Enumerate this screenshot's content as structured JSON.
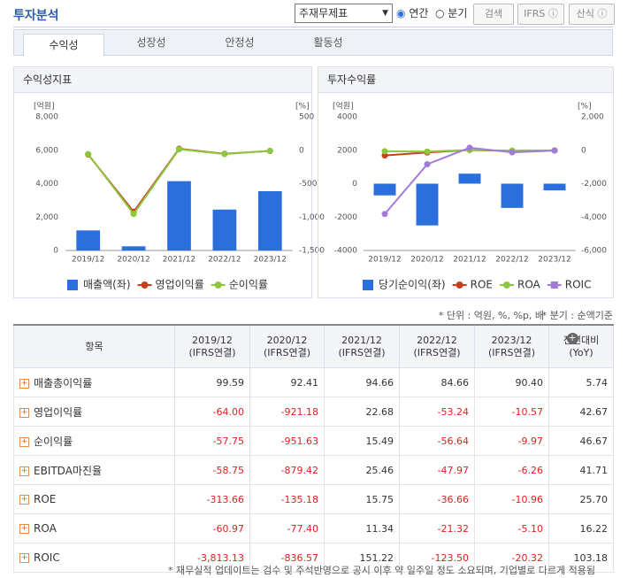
{
  "header": {
    "title": "투자분석",
    "select": "주재무제표",
    "radios": [
      "연간",
      "분기"
    ],
    "buttons": [
      "검색",
      "IFRS",
      "산식"
    ]
  },
  "tabs": [
    "수익성",
    "성장성",
    "안정성",
    "활동성"
  ],
  "chart_data": [
    {
      "type": "combo",
      "title": "수익성지표",
      "y_label": "[억원]",
      "y2_label": "[%]",
      "categories": [
        "2019/12",
        "2020/12",
        "2021/12",
        "2022/12",
        "2023/12"
      ],
      "ylim": [
        0,
        8000
      ],
      "yticks": [
        0,
        {
          "value": 2000,
          "label": "2,000"
        },
        {
          "value": 4000,
          "label": "4,000"
        },
        {
          "value": 6000,
          "label": "6,000"
        },
        {
          "value": 8000,
          "label": "8,000"
        }
      ],
      "y2lim": [
        -1500,
        500
      ],
      "y2ticks": [
        {
          "value": -1500,
          "label": "-1,500"
        },
        {
          "value": -1000,
          "label": "-1,000"
        },
        -500,
        0,
        500
      ],
      "grid": false,
      "series": [
        {
          "name": "매출액(좌)",
          "type": "bar",
          "color": "#2a6fdb",
          "values": [
            1200,
            250,
            4150,
            2450,
            3550
          ]
        },
        {
          "name": "영업이익률",
          "type": "line",
          "axis": "y2",
          "color": "#c8401a",
          "values": [
            -64.0,
            -921.18,
            22.68,
            -53.24,
            -10.57
          ]
        },
        {
          "name": "순이익률",
          "type": "line",
          "axis": "y2",
          "color": "#8dc63f",
          "values": [
            -57.75,
            -951.63,
            15.49,
            -56.64,
            -9.97
          ]
        }
      ]
    },
    {
      "type": "combo",
      "title": "투자수익률",
      "y_label": "[억원]",
      "y2_label": "[%]",
      "categories": [
        "2019/12",
        "2020/12",
        "2021/12",
        "2022/12",
        "2023/12"
      ],
      "ylim": [
        -4000,
        4000
      ],
      "yticks": [
        -4000,
        -2000,
        0,
        2000,
        4000
      ],
      "y2lim": [
        -6000,
        2000
      ],
      "y2ticks": [
        {
          "value": -6000,
          "label": "-6,000"
        },
        {
          "value": -4000,
          "label": "-4,000"
        },
        {
          "value": -2000,
          "label": "-2,000"
        },
        0,
        {
          "value": 2000,
          "label": "2,000"
        }
      ],
      "grid": false,
      "series": [
        {
          "name": "당기순이익(좌)",
          "type": "bar",
          "color": "#2a6fdb",
          "values": [
            -700,
            -2500,
            600,
            -1450,
            -400
          ]
        },
        {
          "name": "ROE",
          "type": "line",
          "axis": "y2",
          "color": "#c8401a",
          "values": [
            -313.66,
            -135.18,
            15.75,
            -36.66,
            -10.96
          ]
        },
        {
          "name": "ROA",
          "type": "line",
          "axis": "y2",
          "color": "#8dc63f",
          "values": [
            -60.97,
            -77.4,
            11.34,
            -21.32,
            -5.1
          ]
        },
        {
          "name": "ROIC",
          "type": "line",
          "axis": "y2",
          "color": "#a17bd8",
          "values": [
            -3813.13,
            -836.57,
            151.22,
            -123.5,
            -20.32
          ]
        }
      ]
    }
  ],
  "notes": [
    "* 단위 : 억원, %, %p, 배",
    "* 분기 : 순액기준"
  ],
  "table": {
    "columns": [
      {
        "period": "항목"
      },
      {
        "period": "2019/12",
        "basis": "(IFRS연결)"
      },
      {
        "period": "2020/12",
        "basis": "(IFRS연결)"
      },
      {
        "period": "2021/12",
        "basis": "(IFRS연결)"
      },
      {
        "period": "2022/12",
        "basis": "(IFRS연결)"
      },
      {
        "period": "2023/12",
        "basis": "(IFRS연결)"
      },
      {
        "period": "전년대비",
        "basis": "(YoY)"
      }
    ],
    "rows": [
      {
        "label": "매출총이익률",
        "values": [
          "99.59",
          "92.41",
          "94.66",
          "84.66",
          "90.40",
          "5.74"
        ]
      },
      {
        "label": "영업이익률",
        "values": [
          "-64.00",
          "-921.18",
          "22.68",
          "-53.24",
          "-10.57",
          "42.67"
        ]
      },
      {
        "label": "순이익률",
        "values": [
          "-57.75",
          "-951.63",
          "15.49",
          "-56.64",
          "-9.97",
          "46.67"
        ]
      },
      {
        "label": "EBITDA마진율",
        "values": [
          "-58.75",
          "-879.42",
          "25.46",
          "-47.97",
          "-6.26",
          "41.71"
        ]
      },
      {
        "label": "ROE",
        "values": [
          "-313.66",
          "-135.18",
          "15.75",
          "-36.66",
          "-10.96",
          "25.70"
        ]
      },
      {
        "label": "ROA",
        "values": [
          "-60.97",
          "-77.40",
          "11.34",
          "-21.32",
          "-5.10",
          "16.22"
        ]
      },
      {
        "label": "ROIC",
        "values": [
          "-3,813.13",
          "-836.57",
          "151.22",
          "-123.50",
          "-20.32",
          "103.18"
        ]
      }
    ]
  },
  "footer": "* 재무실적 업데이트는 검수 및 주석반영으로 공시 이후 약 일주일 정도 소요되며, 기업별로 다르게 적용됨"
}
